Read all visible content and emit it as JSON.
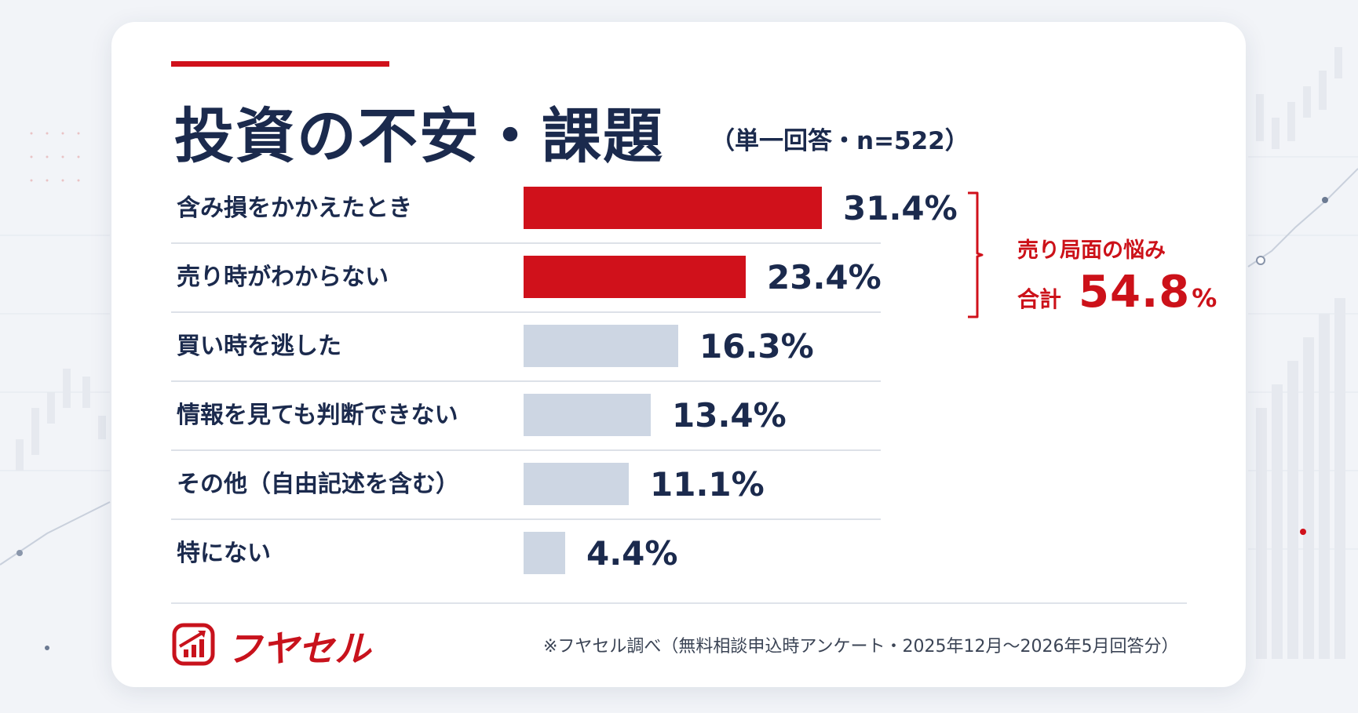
{
  "title": "投資の不安・課題",
  "subtitle": "（単一回答・n=522）",
  "chart_data": {
    "type": "bar",
    "orientation": "horizontal",
    "categories": [
      "含み損をかかえたとき",
      "売り時がわからない",
      "買い時を逃した",
      "情報を見ても判断できない",
      "その他（自由記述を含む）",
      "特にない"
    ],
    "values": [
      31.4,
      23.4,
      16.3,
      13.4,
      11.1,
      4.4
    ],
    "value_labels": [
      "31.4%",
      "23.4%",
      "16.3%",
      "13.4%",
      "11.1%",
      "4.4%"
    ],
    "highlighted": [
      true,
      true,
      false,
      false,
      false,
      false
    ],
    "colors": {
      "highlight": "#d0111b",
      "normal": "#cdd6e3",
      "label": "#1b2a4d",
      "divider": "#dde1e8"
    },
    "xlim": [
      0,
      31.4
    ]
  },
  "callout": {
    "title": "売り局面の悩み",
    "total_label": "合計",
    "total_value": "54.8",
    "total_unit": "%"
  },
  "footer": {
    "brand": "フヤセル",
    "source": "※フヤセル調べ（無料相談申込時アンケート・2025年12月〜2026年5月回答分）"
  },
  "colors": {
    "accent": "#d0111b",
    "navy": "#1b2a4d"
  }
}
